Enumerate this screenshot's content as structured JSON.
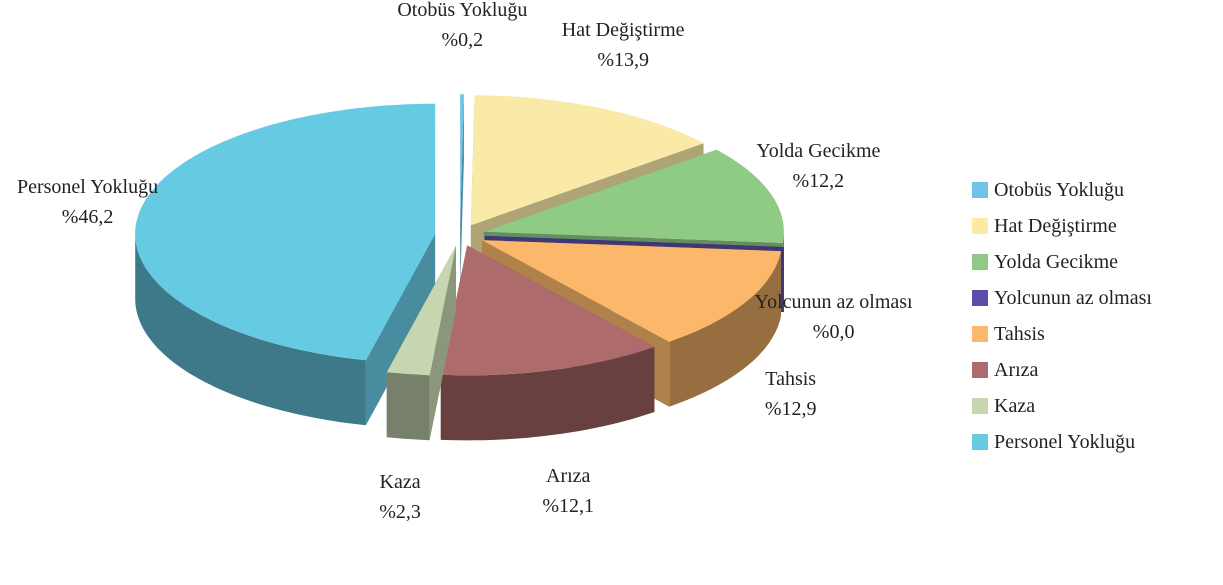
{
  "chart_data": {
    "type": "pie",
    "categories": [
      "Otobüs Yokluğu",
      "Hat Değiştirme",
      "Yolda Gecikme",
      "Yolcunun az olması",
      "Tahsis",
      "Arıza",
      "Kaza",
      "Personel Yokluğu"
    ],
    "values": [
      0.2,
      13.9,
      12.2,
      0.0,
      12.9,
      12.1,
      2.3,
      46.2
    ],
    "value_labels": [
      "%0,2",
      "%13,9",
      "%12,2",
      "%0,0",
      "%12,9",
      "%12,1",
      "%2,3",
      "%46,2"
    ],
    "colors": [
      "#6fc3e8",
      "#faeaa8",
      "#8fcb85",
      "#5a4ea8",
      "#fbb86a",
      "#ad6b6b",
      "#c6d6b0",
      "#66cae3"
    ],
    "legend": "right"
  }
}
